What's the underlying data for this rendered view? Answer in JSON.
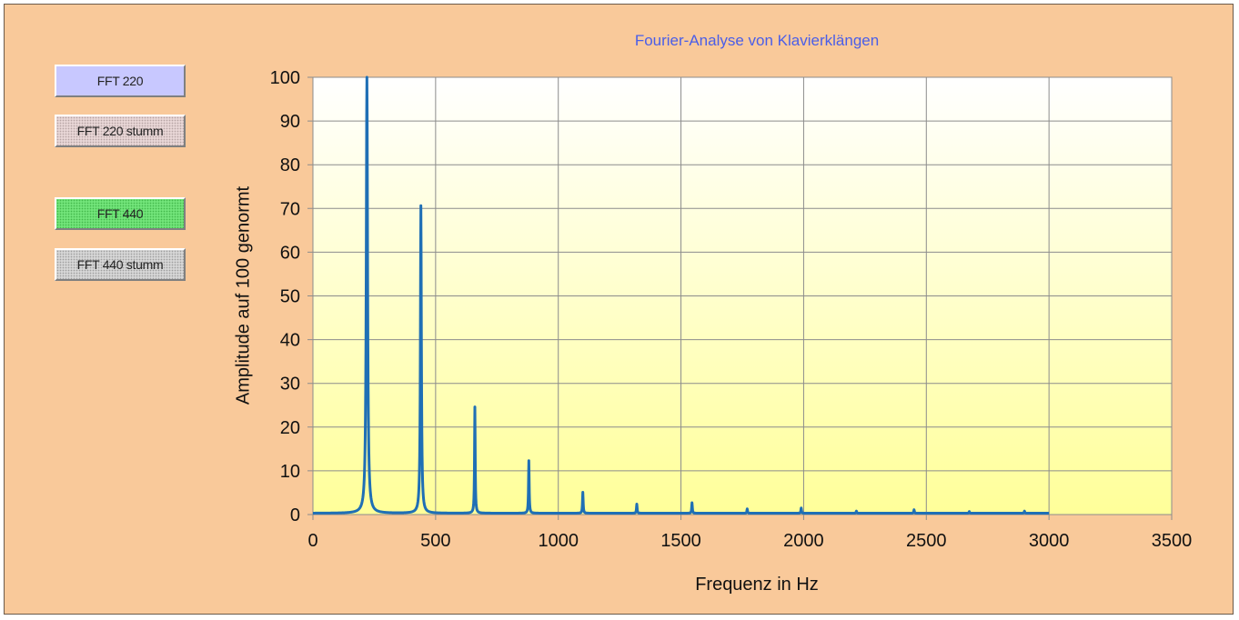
{
  "buttons": {
    "fft220": "FFT 220",
    "fft220_stumm": "FFT 220 stumm",
    "fft440": "FFT 440",
    "fft440_stumm": "FFT 440 stumm"
  },
  "colors": {
    "frame_bg": "#f9c99a",
    "plot_top": "#ffffff",
    "plot_bottom": "#ffff99",
    "series": "#1f6fb5",
    "title": "#4a5ee8"
  },
  "chart_data": {
    "type": "line",
    "title": "Fourier-Analyse von Klavierklängen",
    "xlabel": "Frequenz in Hz",
    "ylabel": "Amplitude auf 100 genormt",
    "xlim": [
      0,
      3500
    ],
    "ylim": [
      0,
      100
    ],
    "xticks": [
      0,
      500,
      1000,
      1500,
      2000,
      2500,
      3000,
      3500
    ],
    "yticks": [
      0,
      10,
      20,
      30,
      40,
      50,
      60,
      70,
      80,
      90,
      100
    ],
    "grid": true,
    "legend": "none",
    "x_range_data": [
      0,
      3000
    ],
    "peaks": [
      {
        "f": 220,
        "a": 100
      },
      {
        "f": 440,
        "a": 70.3
      },
      {
        "f": 660,
        "a": 24.3
      },
      {
        "f": 880,
        "a": 12
      },
      {
        "f": 1100,
        "a": 4.8
      },
      {
        "f": 1320,
        "a": 2.1
      },
      {
        "f": 1545,
        "a": 2.4
      },
      {
        "f": 1770,
        "a": 1
      },
      {
        "f": 1990,
        "a": 1.2
      },
      {
        "f": 2215,
        "a": 0.5
      },
      {
        "f": 2450,
        "a": 0.8
      },
      {
        "f": 2675,
        "a": 0.4
      },
      {
        "f": 2900,
        "a": 0.5
      }
    ]
  }
}
